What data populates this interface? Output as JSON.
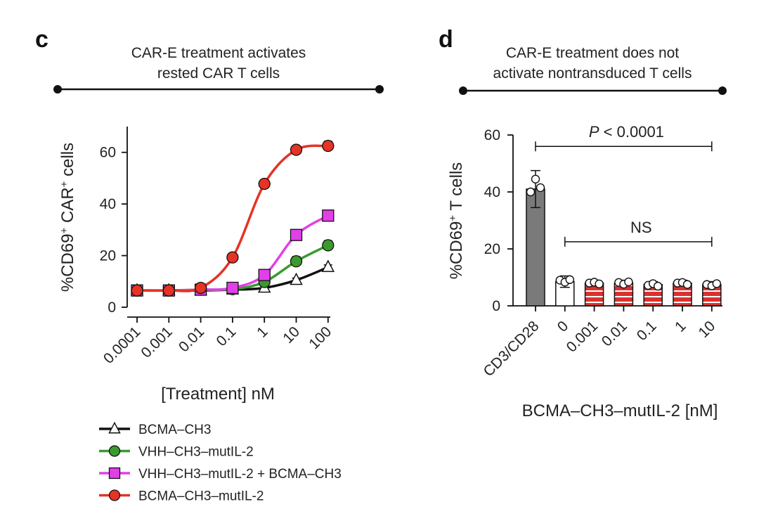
{
  "panels": {
    "c": {
      "letter": "c",
      "header_line1": "CAR-E treatment activates",
      "header_line2": "rested CAR T cells"
    },
    "d": {
      "letter": "d",
      "header_line1": "CAR-E treatment does not",
      "header_line2": "activate nontransduced T cells"
    }
  },
  "chart_data": [
    {
      "type": "line",
      "panel": "c",
      "xscale": "log",
      "x": [
        0.0001,
        0.001,
        0.01,
        0.1,
        1,
        10,
        100
      ],
      "x_tick_labels": [
        "0.0001",
        "0.001",
        "0.01",
        "0.1",
        "1",
        "10",
        "100"
      ],
      "xlabel": "[Treatment] nM",
      "ylabel_parts": {
        "a": "%CD69",
        "a_sup": "+",
        "b": " CAR",
        "b_sup": "+",
        "c": " cells"
      },
      "ylim": [
        0,
        70
      ],
      "y_ticks": [
        0,
        20,
        40,
        60
      ],
      "legend_position": "bottom-left",
      "series": [
        {
          "name": "BCMA–CH3",
          "color": "#111111",
          "marker": "triangle-open",
          "values": [
            6.5,
            6.5,
            6.5,
            6.8,
            7.5,
            10.5,
            15.5
          ],
          "errors": [
            0.5,
            0.5,
            0.5,
            0.5,
            0.6,
            0.8,
            0.9
          ]
        },
        {
          "name": "VHH–CH3–mutIL-2",
          "color": "#3a9a2f",
          "marker": "circle",
          "values": [
            6.5,
            6.5,
            6.8,
            7.0,
            9.8,
            17.8,
            24.0
          ],
          "errors": [
            0.5,
            0.5,
            0.5,
            0.6,
            0.8,
            1.8,
            1.8
          ]
        },
        {
          "name": "VHH–CH3–mutIL-2 + BCMA–CH3",
          "color": "#e040e8",
          "marker": "square",
          "values": [
            6.5,
            6.5,
            6.8,
            7.5,
            12.5,
            28.0,
            35.5
          ],
          "errors": [
            0.5,
            0.5,
            0.5,
            0.6,
            0.8,
            1.5,
            1.2
          ]
        },
        {
          "name": "BCMA–CH3–mutIL-2",
          "color": "#e53325",
          "marker": "circle",
          "values": [
            6.5,
            6.5,
            7.5,
            19.3,
            47.8,
            61.0,
            62.5
          ],
          "errors": [
            0.5,
            0.5,
            0.6,
            1.3,
            1.0,
            1.0,
            1.8
          ]
        }
      ]
    },
    {
      "type": "bar",
      "panel": "d",
      "categories": [
        "CD3/CD28",
        "0",
        "0.001",
        "0.01",
        "0.1",
        "1",
        "10"
      ],
      "values": [
        41.0,
        8.5,
        8.0,
        8.0,
        7.5,
        8.0,
        7.5
      ],
      "errors": [
        6.5,
        2.0,
        1.0,
        1.0,
        1.0,
        1.0,
        1.0
      ],
      "points": [
        [
          40.0,
          44.5,
          41.5
        ],
        [
          9.0,
          8.3,
          9.2
        ],
        [
          8.0,
          8.3,
          7.7
        ],
        [
          8.2,
          7.6,
          8.4
        ],
        [
          7.2,
          7.8,
          6.9
        ],
        [
          8.0,
          8.2,
          7.5
        ],
        [
          7.5,
          7.0,
          7.8
        ]
      ],
      "bar_styles": [
        "gray",
        "white",
        "red-striped",
        "red-striped",
        "red-striped",
        "red-striped",
        "red-striped"
      ],
      "colors": {
        "gray": "#7a7a7a",
        "red": "#d9322f",
        "stripe": "#ffffff"
      },
      "xlabel": "BCMA–CH3–mutIL-2 [nM]",
      "ylabel_parts": {
        "a": "%CD69",
        "a_sup": "+",
        "b": " T cells"
      },
      "ylim": [
        0,
        60
      ],
      "y_ticks": [
        0,
        20,
        40,
        60
      ],
      "annotations": [
        {
          "p": "P",
          "rest": " < 0.0001",
          "from": 0,
          "to": 6,
          "y": 56
        },
        {
          "p": "",
          "rest": "NS",
          "from": 1,
          "to": 6,
          "y": 22.5
        }
      ]
    }
  ]
}
